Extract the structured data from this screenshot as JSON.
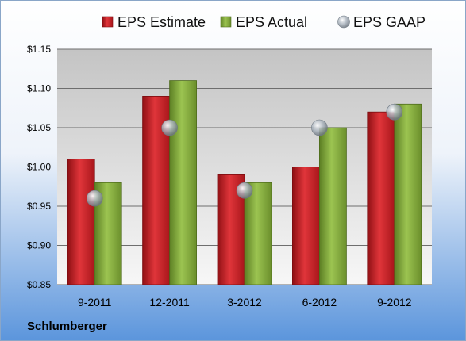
{
  "company": "Schlumberger",
  "chart_data": {
    "type": "bar",
    "title": "",
    "xlabel": "",
    "ylabel": "",
    "categories": [
      "9-2011",
      "12-2011",
      "3-2012",
      "6-2012",
      "9-2012"
    ],
    "series": [
      {
        "name": "EPS Estimate",
        "kind": "bar",
        "color": "#d9262b",
        "values": [
          1.01,
          1.09,
          0.99,
          1.0,
          1.07
        ]
      },
      {
        "name": "EPS Actual",
        "kind": "bar",
        "color": "#8cb540",
        "values": [
          0.98,
          1.11,
          0.98,
          1.05,
          1.08
        ]
      },
      {
        "name": "EPS GAAP",
        "kind": "marker",
        "color": "#a9b3bd",
        "values": [
          0.96,
          1.05,
          0.97,
          1.05,
          1.07
        ]
      }
    ],
    "ylim": [
      0.85,
      1.15
    ],
    "yticks": [
      0.85,
      0.9,
      0.95,
      1.0,
      1.05,
      1.1,
      1.15
    ],
    "ytick_labels": [
      "$0.85",
      "$0.90",
      "$0.95",
      "$1.00",
      "$1.05",
      "$1.10",
      "$1.15"
    ],
    "grid": true,
    "legend_position": "top"
  }
}
